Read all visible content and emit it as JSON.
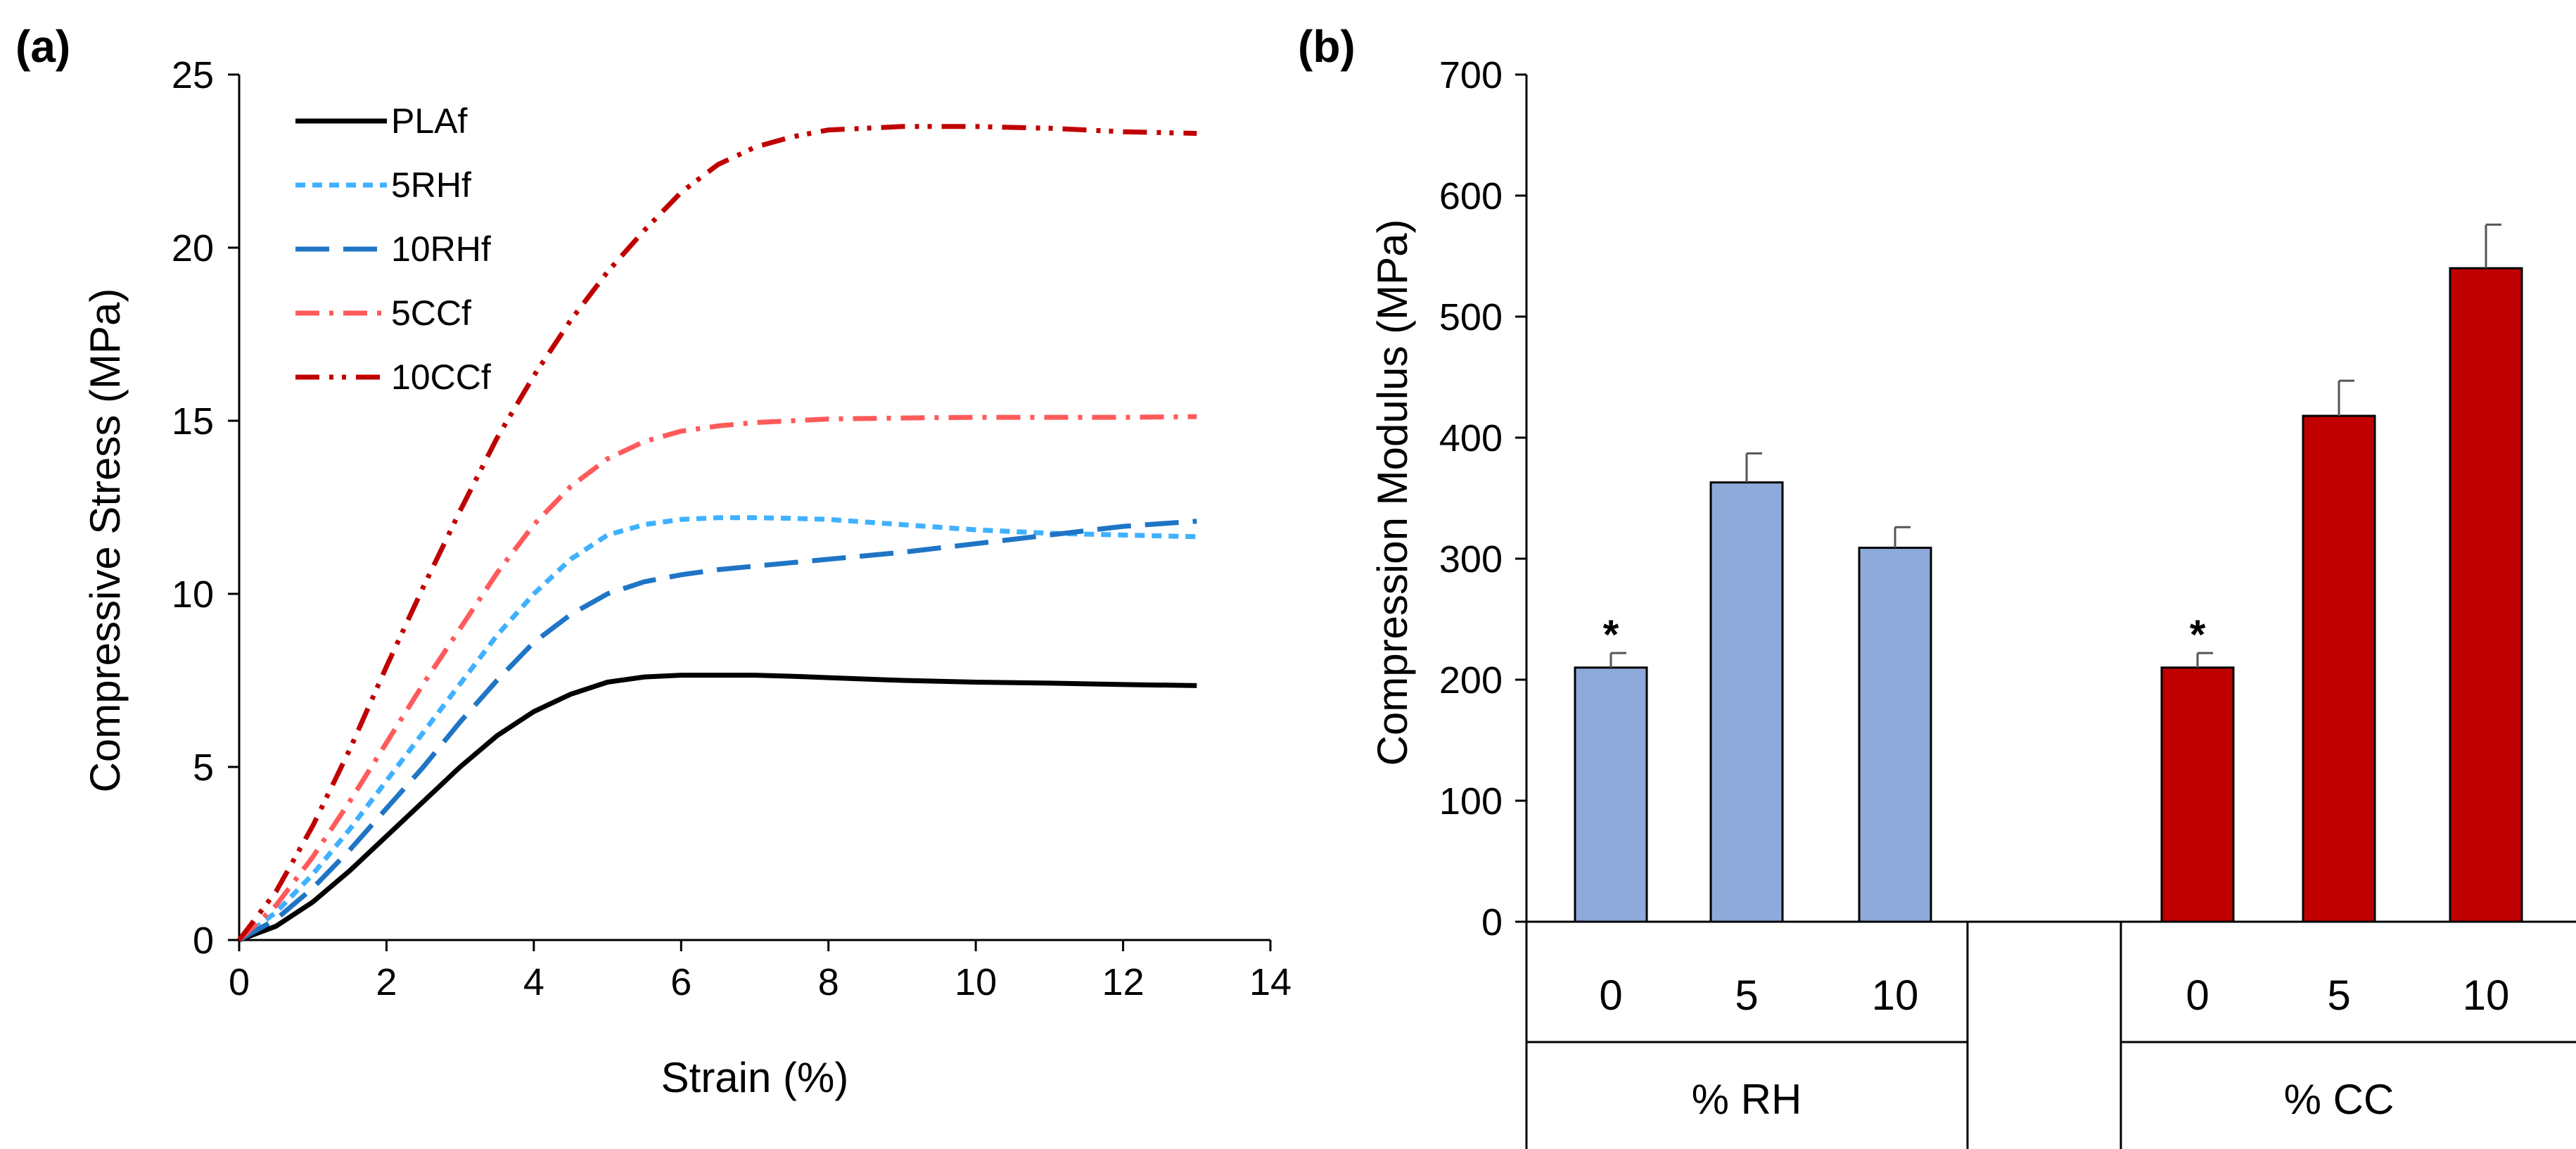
{
  "chart_data": [
    {
      "type": "line",
      "panel_label": "(a)",
      "title": "",
      "xlabel": "Strain (%)",
      "ylabel": "Compressive Stress (MPa)",
      "xlim": [
        0,
        14
      ],
      "ylim": [
        0,
        25
      ],
      "xticks": [
        0,
        2,
        4,
        6,
        8,
        10,
        12,
        14
      ],
      "yticks": [
        0,
        5,
        10,
        15,
        20,
        25
      ],
      "grid": false,
      "legend_position": "top-left",
      "series": [
        {
          "name": "PLAf",
          "color": "#000000",
          "dash": "solid",
          "x": [
            0,
            0.5,
            1,
            1.5,
            2,
            2.5,
            3,
            3.5,
            4,
            4.5,
            5,
            5.5,
            6,
            6.5,
            7,
            7.5,
            8,
            9,
            10,
            11,
            12,
            13
          ],
          "y": [
            0,
            0.4,
            1.1,
            2.0,
            3.0,
            4.0,
            5.0,
            5.9,
            6.6,
            7.1,
            7.45,
            7.6,
            7.65,
            7.65,
            7.65,
            7.62,
            7.58,
            7.5,
            7.45,
            7.42,
            7.38,
            7.35
          ]
        },
        {
          "name": "5RHf",
          "color": "#3fb1ff",
          "dash": "short",
          "x": [
            0,
            0.5,
            1,
            1.5,
            2,
            2.5,
            3,
            3.5,
            4,
            4.5,
            5,
            5.5,
            6,
            6.5,
            7,
            7.5,
            8,
            9,
            10,
            11,
            12,
            13
          ],
          "y": [
            0,
            0.8,
            1.9,
            3.2,
            4.6,
            6.0,
            7.4,
            8.8,
            10.0,
            11.0,
            11.7,
            12.0,
            12.15,
            12.2,
            12.2,
            12.18,
            12.15,
            12.0,
            11.85,
            11.75,
            11.7,
            11.65
          ]
        },
        {
          "name": "10RHf",
          "color": "#1f75c5",
          "dash": "long",
          "x": [
            0,
            0.5,
            1,
            1.5,
            2,
            2.5,
            3,
            3.5,
            4,
            4.5,
            5,
            5.5,
            6,
            6.5,
            7,
            7.5,
            8,
            9,
            10,
            11,
            12,
            13
          ],
          "y": [
            0,
            0.6,
            1.5,
            2.6,
            3.8,
            5.0,
            6.3,
            7.5,
            8.6,
            9.4,
            10.0,
            10.35,
            10.55,
            10.7,
            10.8,
            10.9,
            11.0,
            11.2,
            11.45,
            11.7,
            11.95,
            12.1
          ]
        },
        {
          "name": "5CCf",
          "color": "#ff5a5a",
          "dash": "dash-dot",
          "x": [
            0,
            0.5,
            1,
            1.5,
            2,
            2.5,
            3,
            3.5,
            4,
            4.5,
            5,
            5.5,
            6,
            6.5,
            7,
            7.5,
            8,
            9,
            10,
            11,
            12,
            13
          ],
          "y": [
            0,
            1.0,
            2.4,
            4.0,
            5.7,
            7.4,
            9.0,
            10.6,
            12.0,
            13.1,
            13.9,
            14.4,
            14.7,
            14.85,
            14.95,
            15.0,
            15.05,
            15.08,
            15.1,
            15.1,
            15.1,
            15.12
          ]
        },
        {
          "name": "10CCf",
          "color": "#c00000",
          "dash": "dash-dot-dot",
          "x": [
            0,
            0.5,
            1,
            1.5,
            2,
            2.5,
            3,
            3.5,
            4,
            4.5,
            5,
            5.5,
            6,
            6.5,
            7,
            7.5,
            8,
            8.5,
            9,
            10,
            11,
            12,
            13
          ],
          "y": [
            0,
            1.4,
            3.3,
            5.5,
            7.9,
            10.2,
            12.4,
            14.5,
            16.3,
            17.9,
            19.3,
            20.5,
            21.6,
            22.4,
            22.9,
            23.2,
            23.4,
            23.45,
            23.5,
            23.5,
            23.45,
            23.35,
            23.3
          ]
        }
      ]
    },
    {
      "type": "bar",
      "panel_label": "(b)",
      "title": "",
      "xlabel": "",
      "ylabel": "Compression Modulus (MPa)",
      "ylim": [
        0,
        700
      ],
      "yticks": [
        0,
        100,
        200,
        300,
        400,
        500,
        600,
        700
      ],
      "grid": false,
      "groups": [
        {
          "label": "% RH",
          "color": "#8eaadb",
          "categories": [
            "0",
            "5",
            "10"
          ],
          "values": [
            210,
            363,
            309
          ],
          "errors": [
            12,
            24,
            17
          ],
          "markers": [
            "*",
            "",
            ""
          ]
        },
        {
          "label": "% CC",
          "color": "#c00000",
          "categories": [
            "0",
            "5",
            "10"
          ],
          "values": [
            210,
            418,
            540
          ],
          "errors": [
            12,
            29,
            36
          ],
          "markers": [
            "*",
            "",
            ""
          ]
        }
      ]
    }
  ]
}
